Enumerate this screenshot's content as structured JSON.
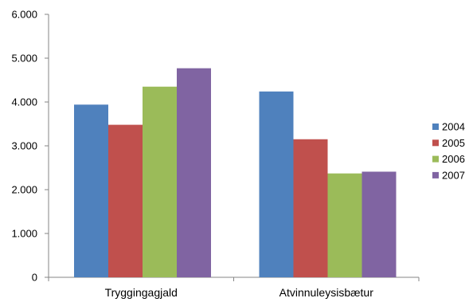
{
  "chart_data": {
    "type": "bar",
    "title": "",
    "xlabel": "",
    "ylabel": "",
    "categories": [
      "Tryggingagjald",
      "Atvinnuleysisbætur"
    ],
    "series": [
      {
        "name": "2004",
        "color": "#4F81BD",
        "values": [
          3940,
          4240
        ]
      },
      {
        "name": "2005",
        "color": "#C0504D",
        "values": [
          3480,
          3150
        ]
      },
      {
        "name": "2006",
        "color": "#9BBB59",
        "values": [
          4350,
          2370
        ]
      },
      {
        "name": "2007",
        "color": "#8064A2",
        "values": [
          4770,
          2410
        ]
      }
    ],
    "ylim": [
      0,
      6000
    ],
    "yticks": [
      0,
      1000,
      2000,
      3000,
      4000,
      5000,
      6000
    ],
    "ytick_labels": [
      "0",
      "1.000",
      "2.000",
      "3.000",
      "4.000",
      "5.000",
      "6.000"
    ],
    "grid": false,
    "legend": "right"
  }
}
